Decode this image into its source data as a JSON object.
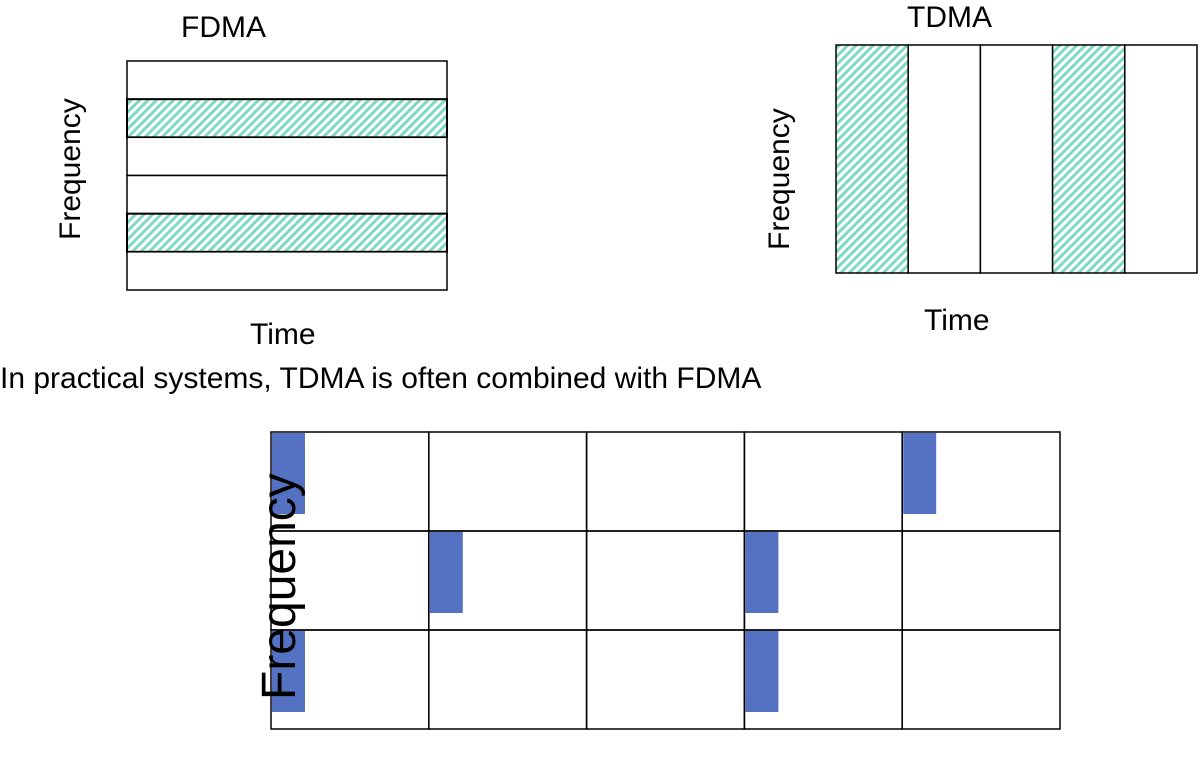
{
  "fdma": {
    "title": "FDMA",
    "xlabel": "Time",
    "ylabel": "Frequency",
    "bands": 6,
    "hatched_bands": [
      1,
      4
    ]
  },
  "tdma": {
    "title": "TDMA",
    "xlabel": "Time",
    "ylabel": "Frequency",
    "slots": 5,
    "hatched_slots": [
      0,
      3
    ]
  },
  "caption": "In practical systems, TDMA is often combined with FDMA",
  "combined": {
    "ylabel": "Frequency",
    "rows": 3,
    "cols": 5,
    "blocks": [
      {
        "row": 0,
        "col": 0
      },
      {
        "row": 0,
        "col": 4
      },
      {
        "row": 1,
        "col": 1
      },
      {
        "row": 1,
        "col": 3
      },
      {
        "row": 2,
        "col": 0
      },
      {
        "row": 2,
        "col": 3
      }
    ]
  },
  "colors": {
    "hatch": "#7fd9c4",
    "block": "#5572c2",
    "line": "#000000"
  }
}
